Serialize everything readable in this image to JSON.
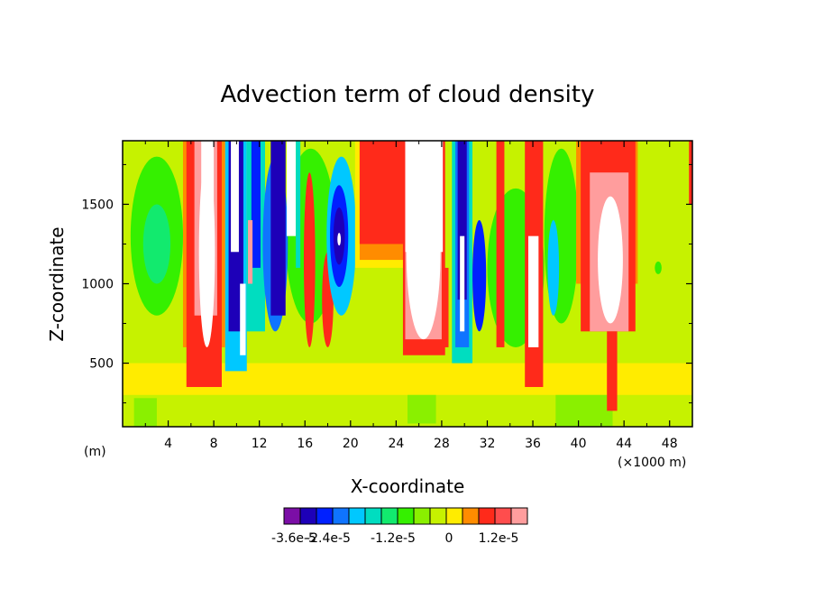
{
  "chart_data": {
    "type": "heatmap",
    "title": "Advection term of cloud density",
    "xlabel": "X-coordinate",
    "ylabel": "Z-coordinate",
    "x_unit_left": "(m)",
    "x_unit_right": "(×1000 m)",
    "xlim": [
      0,
      50
    ],
    "ylim": [
      100,
      1900
    ],
    "x_ticks": [
      "4",
      "8",
      "12",
      "16",
      "20",
      "24",
      "28",
      "32",
      "36",
      "40",
      "44",
      "48"
    ],
    "x_tick_values": [
      4,
      8,
      12,
      16,
      20,
      24,
      28,
      32,
      36,
      40,
      44,
      48
    ],
    "y_ticks": [
      "500",
      "1000",
      "1500"
    ],
    "y_tick_values": [
      500,
      1000,
      1500
    ],
    "colorbar": {
      "colors": [
        "#7b0ea6",
        "#1d00b8",
        "#0020ff",
        "#0f74ff",
        "#00c8ff",
        "#00ddc0",
        "#12ea6e",
        "#35f000",
        "#8af000",
        "#c6f200",
        "#ffec00",
        "#ff8c00",
        "#ff2a1a",
        "#ff4d4d",
        "#ff9d9d"
      ],
      "labels": [
        "-3.6e-5",
        "-2.4e-5",
        "-1.2e-5",
        "0",
        "1.2e-5"
      ]
    },
    "regions": [
      {
        "kind": "rect",
        "color": "#c6f200",
        "x": [
          0,
          50
        ],
        "z": [
          100,
          1900
        ]
      },
      {
        "kind": "rect",
        "color": "#ffec00",
        "x": [
          0,
          50
        ],
        "z": [
          300,
          500
        ]
      },
      {
        "kind": "ell",
        "color": "#35f000",
        "cx": 3,
        "cz": 1300,
        "rx": 2.3,
        "rz": 500
      },
      {
        "kind": "ell",
        "color": "#12ea6e",
        "cx": 3,
        "cz": 1250,
        "rx": 1.2,
        "rz": 250
      },
      {
        "kind": "ell",
        "color": "#35f000",
        "cx": 16.5,
        "cz": 1300,
        "rx": 2.2,
        "rz": 550
      },
      {
        "kind": "ell",
        "color": "#35f000",
        "cx": 34.5,
        "cz": 1100,
        "rx": 2.5,
        "rz": 500
      },
      {
        "kind": "ell",
        "color": "#35f000",
        "cx": 38.5,
        "cz": 1300,
        "rx": 1.5,
        "rz": 550
      },
      {
        "kind": "ell",
        "color": "#35f000",
        "cx": 47,
        "cz": 1100,
        "rx": 0.3,
        "rz": 40
      },
      {
        "kind": "rect",
        "color": "#8af000",
        "x": [
          25,
          27.5
        ],
        "z": [
          120,
          300
        ]
      },
      {
        "kind": "rect",
        "color": "#8af000",
        "x": [
          1,
          3
        ],
        "z": [
          100,
          280
        ]
      },
      {
        "kind": "rect",
        "color": "#8af000",
        "x": [
          38,
          43
        ],
        "z": [
          100,
          300
        ]
      },
      {
        "kind": "rect",
        "color": "#ff8c00",
        "x": [
          5.3,
          9
        ],
        "z": [
          600,
          1900
        ]
      },
      {
        "kind": "rect",
        "color": "#ff2a1a",
        "x": [
          5.6,
          8.7
        ],
        "z": [
          350,
          1900
        ]
      },
      {
        "kind": "rect",
        "color": "#ff9d9d",
        "x": [
          6.3,
          8.3
        ],
        "z": [
          800,
          1900
        ]
      },
      {
        "kind": "ell",
        "color": "#ffffff",
        "cx": 7.4,
        "cz": 1200,
        "rx": 0.7,
        "rz": 600
      },
      {
        "kind": "rect",
        "color": "#ffffff",
        "x": [
          6.9,
          8.0
        ],
        "z": [
          1300,
          1900
        ]
      },
      {
        "kind": "rect",
        "color": "#00c8ff",
        "x": [
          9,
          10.9
        ],
        "z": [
          450,
          1900
        ]
      },
      {
        "kind": "rect",
        "color": "#1d00b8",
        "x": [
          9.3,
          10.6
        ],
        "z": [
          700,
          1900
        ]
      },
      {
        "kind": "rect",
        "color": "#ffffff",
        "x": [
          9.5,
          10.2
        ],
        "z": [
          1200,
          1900
        ]
      },
      {
        "kind": "rect",
        "color": "#ffffff",
        "x": [
          10.3,
          10.8
        ],
        "z": [
          550,
          1000
        ]
      },
      {
        "kind": "rect",
        "color": "#00ddc0",
        "x": [
          10.9,
          12.5
        ],
        "z": [
          700,
          1900
        ]
      },
      {
        "kind": "rect",
        "color": "#0020ff",
        "x": [
          11.3,
          12.1
        ],
        "z": [
          1100,
          1900
        ]
      },
      {
        "kind": "rect",
        "color": "#ff9d9d",
        "x": [
          11.0,
          11.4
        ],
        "z": [
          1000,
          1400
        ]
      },
      {
        "kind": "ell",
        "color": "#0f74ff",
        "cx": 13.4,
        "cz": 1250,
        "rx": 1.1,
        "rz": 550
      },
      {
        "kind": "rect",
        "color": "#1d00b8",
        "x": [
          13.0,
          14.3
        ],
        "z": [
          800,
          1900
        ]
      },
      {
        "kind": "rect",
        "color": "#ffffff",
        "x": [
          14.4,
          15.2
        ],
        "z": [
          1300,
          1900
        ]
      },
      {
        "kind": "rect",
        "color": "#00ddc0",
        "x": [
          15.2,
          15.6
        ],
        "z": [
          1100,
          1900
        ]
      },
      {
        "kind": "ell",
        "color": "#ff2a1a",
        "cx": 16.4,
        "cz": 1150,
        "rx": 0.5,
        "rz": 550
      },
      {
        "kind": "ell",
        "color": "#ff2a1a",
        "cx": 18.0,
        "cz": 900,
        "rx": 0.5,
        "rz": 300
      },
      {
        "kind": "ell",
        "color": "#00c8ff",
        "cx": 19.2,
        "cz": 1300,
        "rx": 1.3,
        "rz": 500
      },
      {
        "kind": "ell",
        "color": "#0020ff",
        "cx": 19.0,
        "cz": 1300,
        "rx": 0.8,
        "rz": 320
      },
      {
        "kind": "ell",
        "color": "#1d00b8",
        "cx": 19.0,
        "cz": 1300,
        "rx": 0.5,
        "rz": 180
      },
      {
        "kind": "ell",
        "color": "#ffffff",
        "cx": 19.0,
        "cz": 1280,
        "rx": 0.15,
        "rz": 40
      },
      {
        "kind": "rect",
        "color": "#ffec00",
        "x": [
          20.4,
          25.0
        ],
        "z": [
          1100,
          1900
        ]
      },
      {
        "kind": "rect",
        "color": "#ff8c00",
        "x": [
          20.8,
          24.8
        ],
        "z": [
          1150,
          1900
        ]
      },
      {
        "kind": "rect",
        "color": "#ff2a1a",
        "x": [
          20.8,
          24.8
        ],
        "z": [
          1250,
          1900
        ]
      },
      {
        "kind": "rect",
        "color": "#ff2a1a",
        "x": [
          24.6,
          28.3
        ],
        "z": [
          550,
          1900
        ]
      },
      {
        "kind": "rect",
        "color": "#ff9d9d",
        "x": [
          24.8,
          28.0
        ],
        "z": [
          650,
          1900
        ]
      },
      {
        "kind": "ell",
        "color": "#ffffff",
        "cx": 26.4,
        "cz": 1200,
        "rx": 1.5,
        "rz": 550
      },
      {
        "kind": "rect",
        "color": "#ffffff",
        "x": [
          24.8,
          28.1
        ],
        "z": [
          1200,
          1900
        ]
      },
      {
        "kind": "rect",
        "color": "#ff2a1a",
        "x": [
          28.2,
          28.6
        ],
        "z": [
          600,
          1100
        ]
      },
      {
        "kind": "rect",
        "color": "#00ddc0",
        "x": [
          28.9,
          30.7
        ],
        "z": [
          500,
          1900
        ]
      },
      {
        "kind": "rect",
        "color": "#0f74ff",
        "x": [
          29.2,
          30.4
        ],
        "z": [
          600,
          1900
        ]
      },
      {
        "kind": "rect",
        "color": "#1d00b8",
        "x": [
          29.4,
          30.2
        ],
        "z": [
          900,
          1900
        ]
      },
      {
        "kind": "rect",
        "color": "#ffffff",
        "x": [
          29.6,
          30.0
        ],
        "z": [
          700,
          1300
        ]
      },
      {
        "kind": "ell",
        "color": "#0020ff",
        "cx": 31.3,
        "cz": 1050,
        "rx": 0.6,
        "rz": 350
      },
      {
        "kind": "rect",
        "color": "#ff2a1a",
        "x": [
          32.8,
          33.5
        ],
        "z": [
          600,
          1900
        ]
      },
      {
        "kind": "rect",
        "color": "#ff2a1a",
        "x": [
          35.3,
          36.9
        ],
        "z": [
          350,
          1900
        ]
      },
      {
        "kind": "rect",
        "color": "#ffffff",
        "x": [
          35.6,
          36.5
        ],
        "z": [
          600,
          1300
        ]
      },
      {
        "kind": "ell",
        "color": "#00c8ff",
        "cx": 37.8,
        "cz": 1100,
        "rx": 0.5,
        "rz": 300
      },
      {
        "kind": "rect",
        "color": "#ff8c00",
        "x": [
          39.8,
          45.2
        ],
        "z": [
          1000,
          1900
        ]
      },
      {
        "kind": "rect",
        "color": "#ff2a1a",
        "x": [
          40.2,
          45.0
        ],
        "z": [
          700,
          1900
        ]
      },
      {
        "kind": "rect",
        "color": "#ff9d9d",
        "x": [
          41.0,
          44.4
        ],
        "z": [
          700,
          1700
        ]
      },
      {
        "kind": "ell",
        "color": "#ffffff",
        "cx": 42.8,
        "cz": 1150,
        "rx": 1.1,
        "rz": 400
      },
      {
        "kind": "rect",
        "color": "#ff2a1a",
        "x": [
          42.5,
          43.4
        ],
        "z": [
          200,
          700
        ]
      },
      {
        "kind": "rect",
        "color": "#ff2a1a",
        "x": [
          49.7,
          50.0
        ],
        "z": [
          1500,
          1900
        ]
      }
    ]
  }
}
